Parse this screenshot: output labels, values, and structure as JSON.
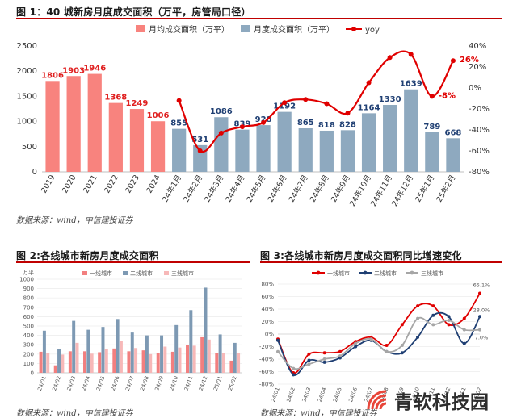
{
  "fig1": {
    "title": "图 1：40 城新房月度成交面积（万平，房管局口径）",
    "source": "数据来源：wind，中信建投证券",
    "chart_data": {
      "type": "bar",
      "categories": [
        "2019",
        "2020",
        "2021",
        "2022",
        "2023",
        "2024",
        "24年1月",
        "24年2月",
        "24年3月",
        "24年4月",
        "24年5月",
        "24年6月",
        "24年7月",
        "24年8月",
        "24年9月",
        "24年10月",
        "24年11月",
        "24年12月",
        "25年1月",
        "25年2月"
      ],
      "series": [
        {
          "name": "月均成交面积（万平）",
          "values": [
            1806,
            1903,
            1946,
            1368,
            1249,
            1006,
            null,
            null,
            null,
            null,
            null,
            null,
            null,
            null,
            null,
            null,
            null,
            null,
            null,
            null
          ],
          "color": "#f8837e"
        },
        {
          "name": "月度成交面积（万平）",
          "values": [
            null,
            null,
            null,
            null,
            null,
            null,
            855,
            531,
            1086,
            839,
            928,
            1192,
            865,
            818,
            828,
            1164,
            1330,
            1639,
            789,
            668
          ],
          "color": "#8ea9bf"
        },
        {
          "name": "yoy",
          "axis": "right",
          "values": [
            null,
            null,
            null,
            null,
            null,
            null,
            -12,
            -60,
            -43,
            -37,
            -33,
            -14,
            -11,
            -15,
            -24,
            5,
            29,
            32,
            -8,
            26
          ],
          "color": "#e00000"
        }
      ],
      "data_labels_left": [
        "1806",
        "1903",
        "1946",
        "1368",
        "1249",
        "1006",
        "855",
        "531",
        "1086",
        "839",
        "928",
        "1192",
        "865",
        "818",
        "828",
        "1164",
        "1330",
        "1639",
        "789",
        "668"
      ],
      "yoy_labels": [
        {
          "index": 18,
          "text": "-8%"
        },
        {
          "index": 19,
          "text": "26%"
        }
      ],
      "yticks_left": [
        "0",
        "500",
        "1000",
        "1500",
        "2000",
        "2500"
      ],
      "yticks_right": [
        "-80%",
        "-60%",
        "-40%",
        "-20%",
        "0%",
        "20%",
        "40%"
      ],
      "ylim_left": [
        0,
        2500
      ],
      "ylim_right": [
        -80,
        40
      ],
      "grid": false,
      "legend": "top"
    }
  },
  "fig2": {
    "title": "图 2:各线城市新房月度成交面积",
    "source": "数据来源：wind，中信建投证券",
    "chart_data": {
      "type": "bar",
      "ylabel": "万平",
      "categories": [
        "24/01",
        "24/02",
        "24/03",
        "24/04",
        "24/05",
        "24/06",
        "24/07",
        "24/08",
        "24/09",
        "24/10",
        "24/11",
        "24/12",
        "25/01",
        "25/02"
      ],
      "series": [
        {
          "name": "一线城市",
          "values": [
            225,
            80,
            230,
            230,
            220,
            260,
            230,
            240,
            210,
            225,
            300,
            380,
            210,
            130
          ],
          "color": "#f27f7f"
        },
        {
          "name": "二线城市",
          "values": [
            450,
            250,
            555,
            460,
            490,
            575,
            430,
            400,
            400,
            510,
            670,
            910,
            410,
            320
          ],
          "color": "#7d99b3"
        },
        {
          "name": "三线城市",
          "values": [
            210,
            195,
            320,
            205,
            250,
            340,
            265,
            200,
            280,
            270,
            290,
            355,
            210,
            210
          ],
          "color": "#f7b8b8"
        }
      ],
      "yticks": [
        "0",
        "100",
        "200",
        "300",
        "400",
        "500",
        "600",
        "700",
        "800",
        "900",
        "1000"
      ],
      "ylim": [
        0,
        1000
      ],
      "legend": "top"
    }
  },
  "fig3": {
    "title": "图 3:各线城市新房月度成交面积同比增速变化",
    "source": "数据来源：wind，中信建投证券",
    "chart_data": {
      "type": "line",
      "categories": [
        "24/01",
        "24/02",
        "24/03",
        "24/04",
        "24/05",
        "24/06",
        "24/07",
        "24/08",
        "24/09",
        "24/10",
        "24/11",
        "24/12",
        "25/01",
        "25/02"
      ],
      "series": [
        {
          "name": "一线城市",
          "values": [
            -8,
            -62,
            -32,
            -30,
            -28,
            -12,
            -5,
            -18,
            15,
            45,
            45,
            15,
            25,
            65.1
          ],
          "color": "#e00000"
        },
        {
          "name": "二线城市",
          "values": [
            -10,
            -65,
            -42,
            -45,
            -38,
            -20,
            -10,
            -28,
            -30,
            -5,
            30,
            28,
            -15,
            28.0
          ],
          "color": "#1f3f73"
        },
        {
          "name": "三线城市",
          "values": [
            -28,
            -55,
            -48,
            -40,
            -35,
            -15,
            -8,
            -28,
            -18,
            25,
            15,
            22,
            7,
            7.0
          ],
          "color": "#a6a6a6"
        }
      ],
      "end_labels": [
        "65.1%",
        "28.0%",
        "7.0%"
      ],
      "yticks": [
        "-80%",
        "-60%",
        "-40%",
        "-20%",
        "0%",
        "20%",
        "40%",
        "60%",
        "80%"
      ],
      "ylim": [
        -80,
        80
      ],
      "legend": "top"
    }
  },
  "watermark": {
    "text": "青软科技园"
  }
}
